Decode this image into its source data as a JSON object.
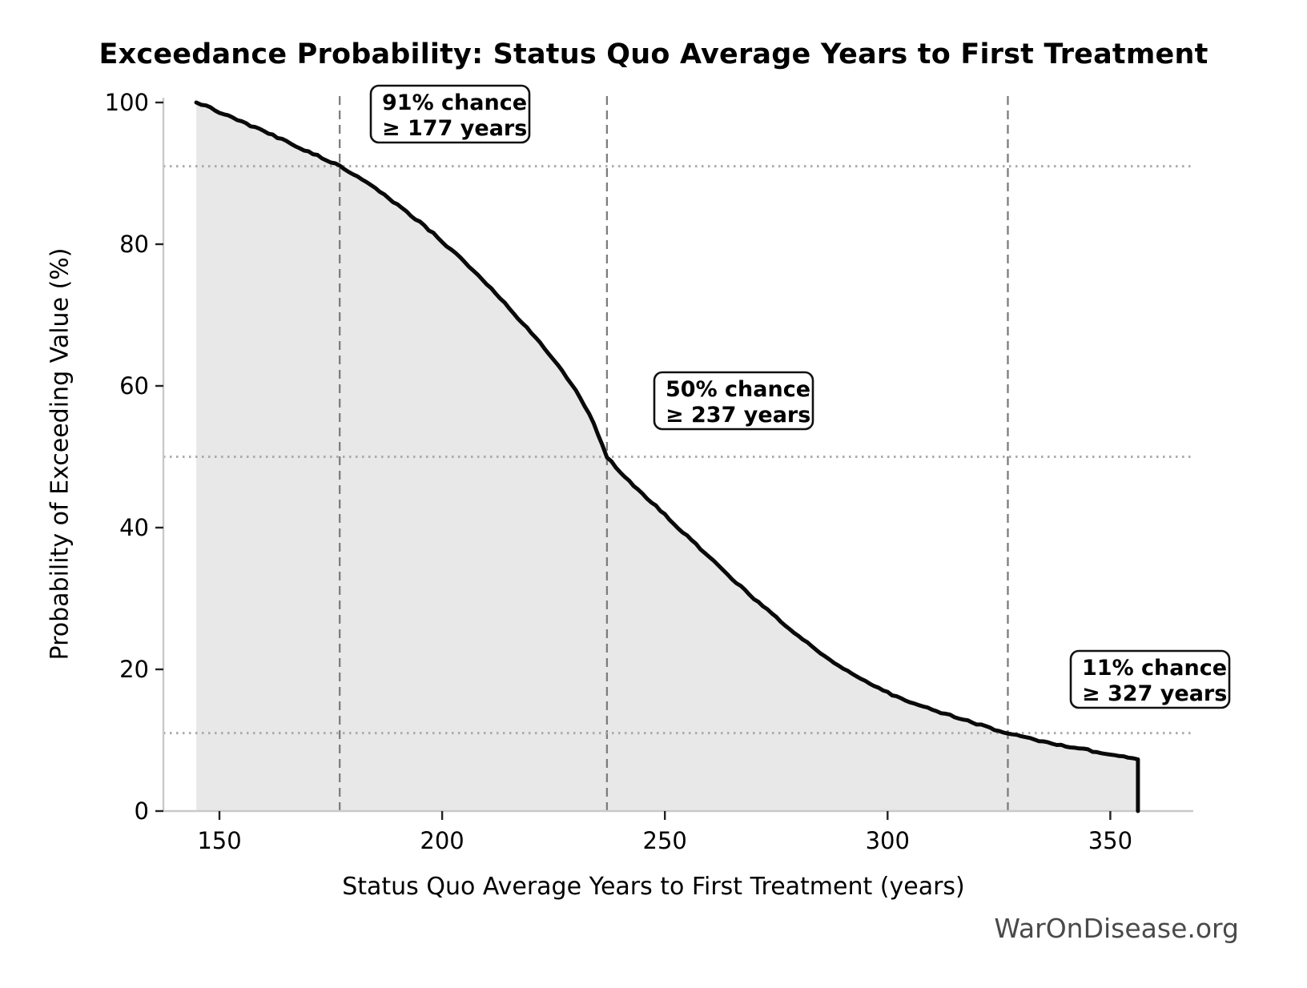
{
  "chart_data": {
    "type": "area",
    "title": "Exceedance Probability: Status Quo Average Years to First Treatment",
    "xlabel": "Status Quo Average Years to First Treatment (years)",
    "ylabel": "Probability of Exceeding Value (%)",
    "x_ticks": [
      150,
      200,
      250,
      300,
      350
    ],
    "y_ticks": [
      0,
      20,
      40,
      60,
      80,
      100
    ],
    "xlim": [
      137,
      369
    ],
    "ylim": [
      0,
      101
    ],
    "legend": "none",
    "grid": "reference lines only (dotted horizontal at 91/50/11, dashed vertical at 177/237/327)",
    "series": [
      {
        "name": "exceedance-probability-curve",
        "points": [
          [
            144.8,
            100
          ],
          [
            147,
            99.5
          ],
          [
            150,
            98.6
          ],
          [
            153,
            97.8
          ],
          [
            156,
            97.0
          ],
          [
            159,
            96.2
          ],
          [
            162,
            95.4
          ],
          [
            165,
            94.5
          ],
          [
            168,
            93.6
          ],
          [
            171,
            92.8
          ],
          [
            174,
            91.9
          ],
          [
            177,
            91.0
          ],
          [
            180,
            89.9
          ],
          [
            183,
            88.7
          ],
          [
            186,
            87.4
          ],
          [
            189,
            86.0
          ],
          [
            192,
            84.6
          ],
          [
            195,
            83.1
          ],
          [
            198,
            81.5
          ],
          [
            201,
            79.8
          ],
          [
            204,
            78.1
          ],
          [
            207,
            76.3
          ],
          [
            210,
            74.4
          ],
          [
            213,
            72.4
          ],
          [
            216,
            70.3
          ],
          [
            219,
            68.2
          ],
          [
            222,
            66.0
          ],
          [
            225,
            63.7
          ],
          [
            228,
            61.2
          ],
          [
            231,
            58.4
          ],
          [
            234,
            54.8
          ],
          [
            237,
            50.0
          ],
          [
            240,
            47.7
          ],
          [
            243,
            45.9
          ],
          [
            246,
            44.2
          ],
          [
            249,
            42.4
          ],
          [
            252,
            40.6
          ],
          [
            255,
            38.8
          ],
          [
            258,
            37.0
          ],
          [
            261,
            35.2
          ],
          [
            264,
            33.4
          ],
          [
            267,
            31.7
          ],
          [
            270,
            30.0
          ],
          [
            273,
            28.4
          ],
          [
            276,
            26.8
          ],
          [
            279,
            25.2
          ],
          [
            282,
            23.7
          ],
          [
            285,
            22.2
          ],
          [
            288,
            20.9
          ],
          [
            291,
            19.7
          ],
          [
            294,
            18.6
          ],
          [
            297,
            17.6
          ],
          [
            300,
            16.7
          ],
          [
            303,
            15.9
          ],
          [
            306,
            15.2
          ],
          [
            309,
            14.5
          ],
          [
            312,
            13.9
          ],
          [
            315,
            13.3
          ],
          [
            318,
            12.7
          ],
          [
            321,
            12.1
          ],
          [
            324,
            11.5
          ],
          [
            327,
            11.0
          ],
          [
            330,
            10.5
          ],
          [
            333,
            10.1
          ],
          [
            336,
            9.7
          ],
          [
            339,
            9.3
          ],
          [
            342,
            8.9
          ],
          [
            345,
            8.6
          ],
          [
            348,
            8.2
          ],
          [
            351,
            7.9
          ],
          [
            354,
            7.6
          ],
          [
            356.2,
            7.3
          ]
        ]
      }
    ],
    "end_drop": {
      "x": 356.2,
      "top": 7.3,
      "bottom": 0
    },
    "annotations": [
      {
        "prob": 91,
        "value": 177,
        "line1": "91% chance",
        "line2": "≥ 177 years"
      },
      {
        "prob": 50,
        "value": 237,
        "line1": "50% chance",
        "line2": "≥ 237 years"
      },
      {
        "prob": 11,
        "value": 327,
        "line1": "11% chance",
        "line2": "≥ 327 years"
      }
    ]
  },
  "footer": {
    "watermark": "WarOnDisease.org"
  },
  "colors": {
    "background": "#ffffff",
    "fill_area": "#e8e8e8",
    "curve": "#0a0a0a",
    "dashed_line": "#7d7d7d",
    "dotted_line": "#ababab",
    "spine": "#c9c9c9",
    "tick": "#222222",
    "text": "#000000",
    "annotation_border": "#111111",
    "watermark": "#4a4a4a"
  }
}
